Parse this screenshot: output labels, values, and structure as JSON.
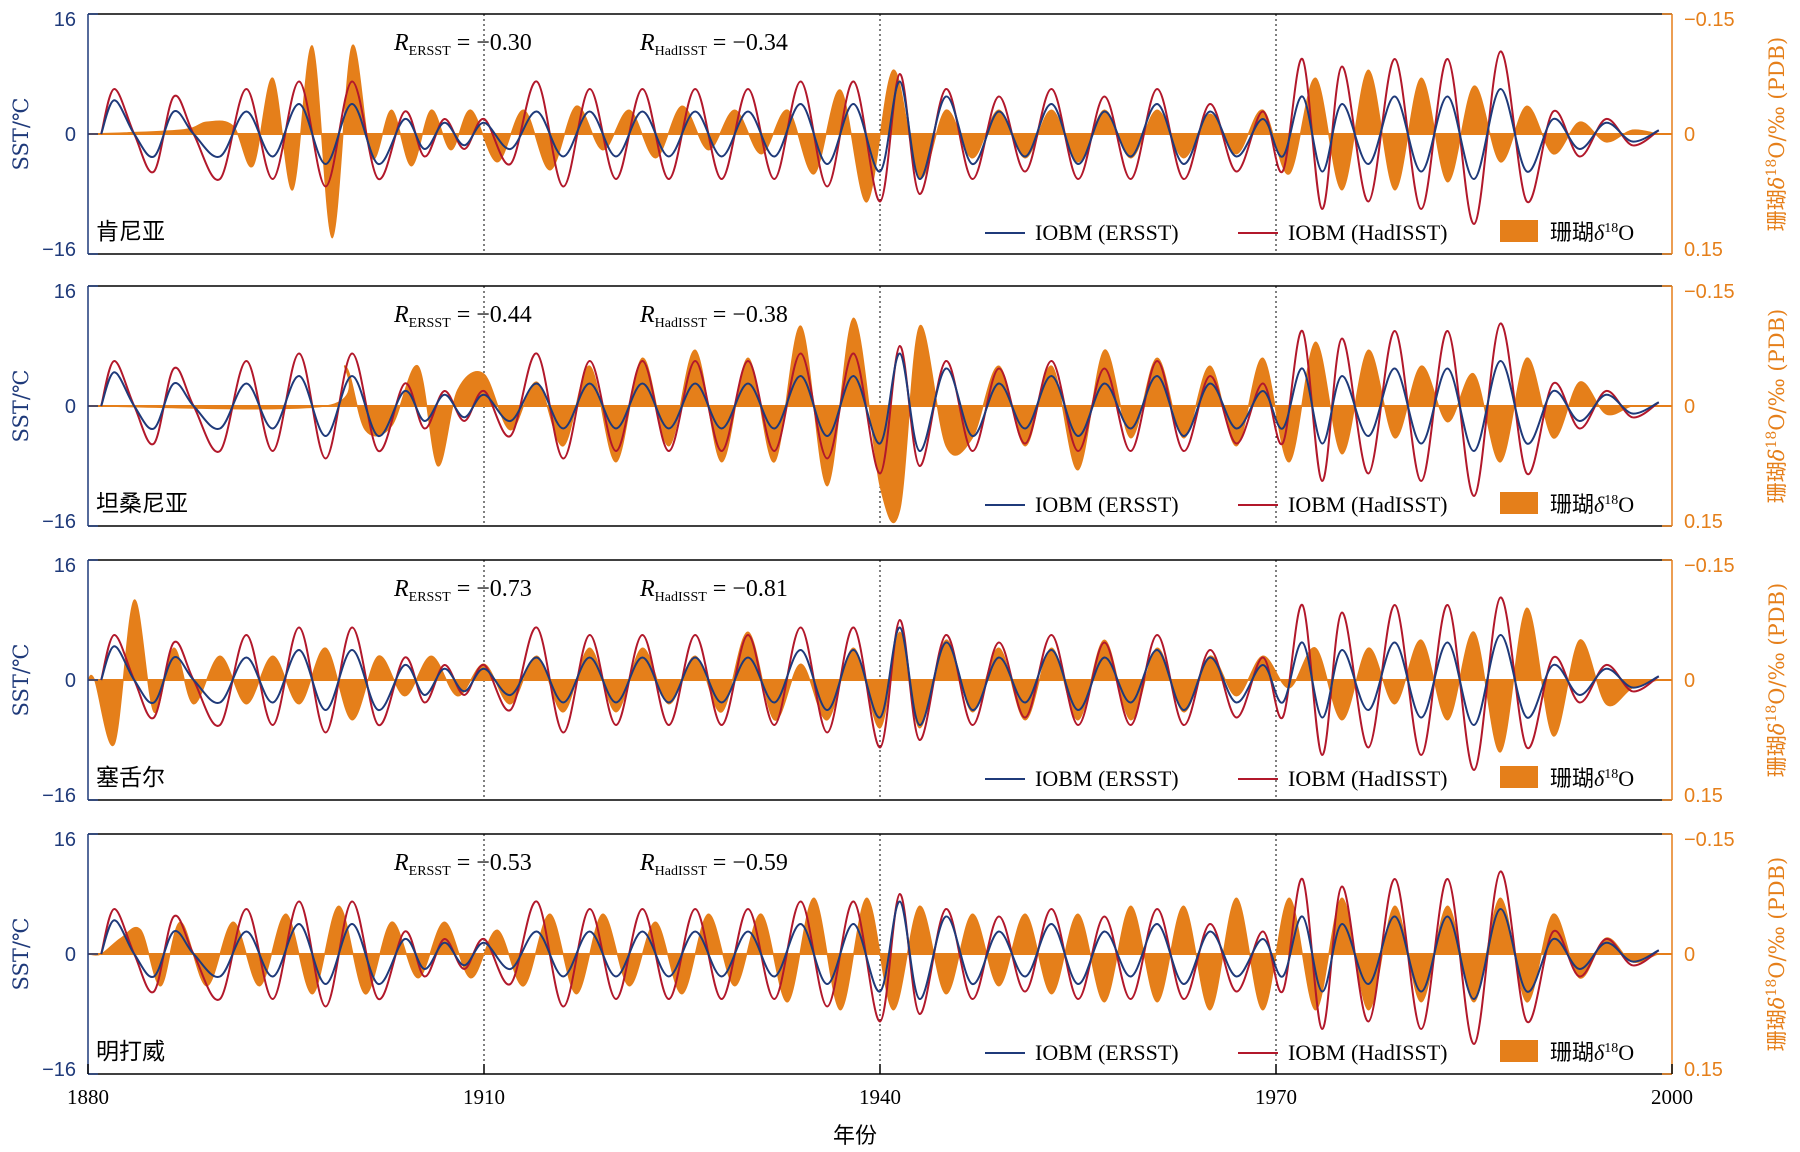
{
  "chart_data": {
    "type": "line",
    "xlabel": "年份",
    "ylabel_left": "SST/℃",
    "ylabel_right_prefix": "珊瑚",
    "ylabel_right_delta": "δ",
    "ylabel_right_sup": "18",
    "ylabel_right_suffix": "O/‰ (PDB)",
    "xlim": [
      1880,
      2000
    ],
    "xticks": [
      "1880",
      "1910",
      "1940",
      "1970",
      "2000"
    ],
    "vlines": [
      1910,
      1940,
      1970
    ],
    "ylim_left": [
      -16,
      16
    ],
    "yticks_left": [
      "16",
      "0",
      "−16"
    ],
    "ylim_right": [
      0.15,
      -0.15
    ],
    "yticks_right": [
      "−0.15",
      "0",
      "0.15"
    ],
    "colors": {
      "ersst": "#1f3a7a",
      "hadisst": "#b2182b",
      "coral": "#e57f1a",
      "axis_left": "#1f3a7a",
      "axis_right": "#e57f1a"
    },
    "legend": {
      "ersst": "IOBM (ERSST)",
      "hadisst": "IOBM (HadISST)",
      "coral_prefix": "珊瑚",
      "coral_delta": "δ",
      "coral_sup": "18",
      "coral_suffix": "O"
    },
    "r_labels": {
      "r": "R",
      "ersst_sub": "ERSST",
      "hadisst_sub": "HadISST",
      "eq": " = "
    },
    "ersst_series": {
      "x": [
        1881,
        1882,
        1883.5,
        1885,
        1886.5,
        1888,
        1890,
        1892,
        1894,
        1896,
        1898,
        1900,
        1902,
        1904,
        1905.5,
        1907,
        1908.5,
        1910,
        1912,
        1914,
        1916,
        1918,
        1920,
        1922,
        1924,
        1926,
        1928,
        1930,
        1932,
        1934,
        1936,
        1938,
        1940,
        1941.5,
        1943,
        1945,
        1947,
        1949,
        1951,
        1953,
        1955,
        1957,
        1959,
        1961,
        1963,
        1965,
        1967,
        1969,
        1970.5,
        1972,
        1973.5,
        1975,
        1977,
        1979,
        1981,
        1983,
        1985,
        1987,
        1989,
        1991,
        1993,
        1995,
        1997,
        1999
      ],
      "y": [
        0,
        4.5,
        0,
        -3,
        3,
        0,
        -3,
        3,
        -3,
        4,
        -4,
        4,
        -4,
        2,
        -2,
        1.5,
        -1.5,
        1.5,
        -2,
        3,
        -3,
        3,
        -3,
        3,
        -3,
        3,
        -3,
        3,
        -3,
        4,
        -4,
        4,
        -5,
        7,
        -6,
        5,
        -4,
        3,
        -3,
        4,
        -4,
        3,
        -3,
        4,
        -4,
        3,
        -3,
        2,
        -3,
        5,
        -5,
        4,
        -4,
        5,
        -5,
        5,
        -6,
        6,
        -5,
        2,
        -2,
        1.5,
        -1,
        0.5
      ]
    },
    "hadisst_series": {
      "x": [
        1881,
        1882,
        1883.5,
        1885,
        1886.5,
        1888,
        1890,
        1892,
        1894,
        1896,
        1898,
        1900,
        1902,
        1904,
        1905.5,
        1907,
        1908.5,
        1910,
        1912,
        1914,
        1916,
        1918,
        1920,
        1922,
        1924,
        1926,
        1928,
        1930,
        1932,
        1934,
        1936,
        1938,
        1940,
        1941.5,
        1943,
        1945,
        1947,
        1949,
        1951,
        1953,
        1955,
        1957,
        1959,
        1961,
        1963,
        1965,
        1967,
        1969,
        1970.5,
        1972,
        1973.5,
        1975,
        1977,
        1979,
        1981,
        1983,
        1985,
        1987,
        1989,
        1991,
        1993,
        1995,
        1997,
        1999
      ],
      "y": [
        0,
        6,
        0,
        -5,
        5,
        0,
        -6,
        6,
        -6,
        7,
        -7,
        7,
        -6,
        3,
        -3,
        2,
        -2,
        2,
        -4,
        7,
        -7,
        6,
        -6,
        6,
        -6,
        6,
        -6,
        6,
        -6,
        7,
        -7,
        7,
        -9,
        8,
        -8,
        6,
        -6,
        5,
        -5,
        6,
        -6,
        5,
        -6,
        6,
        -6,
        4,
        -5,
        3,
        -5,
        10,
        -10,
        9,
        -9,
        10,
        -10,
        10,
        -12,
        11,
        -9,
        3,
        -3,
        2,
        -1.5,
        0.5
      ]
    },
    "panels": [
      {
        "site": "肯尼亚",
        "r_ersst": "−0.30",
        "r_hadisst": "−0.34",
        "coral": {
          "x": [
            1887,
            1889,
            1891,
            1892.5,
            1894,
            1895.5,
            1897,
            1898.5,
            1900,
            1901.5,
            1903,
            1904.5,
            1906,
            1907.5,
            1909,
            1911,
            1913,
            1915,
            1917,
            1919,
            1921,
            1923,
            1925,
            1927,
            1929,
            1931,
            1933,
            1935,
            1937,
            1939,
            1941,
            1943,
            1945,
            1947,
            1949,
            1951,
            1953,
            1955,
            1957,
            1959,
            1961,
            1963,
            1965,
            1967,
            1969,
            1971,
            1973,
            1975,
            1977,
            1979,
            1981,
            1983,
            1985,
            1987,
            1989,
            1991,
            1993,
            1995,
            1997,
            1999
          ],
          "d": [
            -0.005,
            -0.015,
            -0.01,
            0.04,
            -0.07,
            0.07,
            -0.11,
            0.13,
            -0.11,
            0.03,
            -0.03,
            0.04,
            -0.03,
            0.02,
            -0.03,
            0.035,
            -0.03,
            0.045,
            -0.035,
            0.02,
            -0.03,
            0.03,
            -0.035,
            0.02,
            -0.03,
            0.025,
            -0.03,
            0.05,
            -0.055,
            0.085,
            -0.08,
            0.055,
            -0.03,
            0.03,
            -0.03,
            0.03,
            -0.03,
            0.035,
            -0.03,
            0.03,
            -0.03,
            0.03,
            -0.025,
            0.025,
            -0.03,
            0.05,
            -0.07,
            0.07,
            -0.08,
            0.07,
            -0.07,
            0.06,
            -0.06,
            0.035,
            -0.035,
            0.025,
            -0.015,
            0.01,
            -0.005,
            0
          ]
        }
      },
      {
        "site": "坦桑尼亚",
        "r_ersst": "−0.44",
        "r_hadisst": "−0.38",
        "coral": {
          "x": [
            1898,
            1899.5,
            1901,
            1903,
            1905,
            1906.5,
            1908,
            1910,
            1912,
            1914,
            1916,
            1918,
            1920,
            1922,
            1924,
            1926,
            1928,
            1930,
            1932,
            1934,
            1936,
            1938,
            1940,
            1941.5,
            1943,
            1945,
            1947,
            1949,
            1951,
            1953,
            1955,
            1957,
            1959,
            1961,
            1963,
            1965,
            1967,
            1969,
            1971,
            1973,
            1975,
            1977,
            1979,
            1981,
            1983,
            1985,
            1987,
            1989,
            1991,
            1993,
            1995,
            1997,
            1999
          ],
          "d": [
            0,
            -0.05,
            0.03,
            0.025,
            -0.05,
            0.075,
            -0.02,
            -0.04,
            0.03,
            -0.03,
            0.05,
            -0.05,
            0.07,
            -0.06,
            0.05,
            -0.07,
            0.07,
            -0.06,
            0.07,
            -0.1,
            0.1,
            -0.11,
            0.1,
            0.13,
            -0.1,
            0.05,
            0.04,
            -0.05,
            0.05,
            -0.05,
            0.08,
            -0.07,
            0.04,
            -0.06,
            0.04,
            -0.05,
            0.05,
            -0.06,
            0.07,
            -0.08,
            0.06,
            -0.07,
            0.04,
            -0.05,
            0.02,
            -0.04,
            0.07,
            -0.06,
            0.04,
            -0.03,
            0.01,
            0,
            0
          ]
        }
      },
      {
        "site": "塞舌尔",
        "r_ersst": "−0.73",
        "r_hadisst": "−0.81",
        "coral": {
          "x": [
            1880.5,
            1882,
            1883.5,
            1885,
            1886.5,
            1888,
            1890,
            1892,
            1894,
            1896,
            1898,
            1900,
            1902,
            1904,
            1906,
            1908,
            1910,
            1912,
            1914,
            1916,
            1918,
            1920,
            1922,
            1924,
            1926,
            1928,
            1930,
            1932,
            1934,
            1936,
            1938,
            1940,
            1941.5,
            1943,
            1945,
            1947,
            1949,
            1951,
            1953,
            1955,
            1957,
            1959,
            1961,
            1963,
            1965,
            1967,
            1969,
            1971,
            1973,
            1975,
            1977,
            1979,
            1981,
            1983,
            1985,
            1987,
            1989,
            1991,
            1993,
            1995,
            1997,
            1999
          ],
          "d": [
            0,
            0.08,
            -0.1,
            0.04,
            -0.04,
            0.03,
            -0.03,
            0.03,
            -0.03,
            0.03,
            -0.04,
            0.05,
            -0.03,
            0.02,
            -0.03,
            0.02,
            -0.02,
            0.03,
            -0.03,
            0.04,
            -0.04,
            0.04,
            -0.04,
            0.03,
            -0.03,
            0.04,
            -0.06,
            0.05,
            -0.02,
            0.05,
            -0.04,
            0.06,
            -0.06,
            0.06,
            -0.05,
            0.04,
            -0.04,
            0.05,
            -0.04,
            0.05,
            -0.05,
            0.05,
            -0.04,
            0.04,
            -0.03,
            0.02,
            -0.03,
            0.01,
            -0.04,
            0.05,
            -0.04,
            0.03,
            -0.05,
            0.05,
            -0.06,
            0.09,
            -0.09,
            0.07,
            -0.05,
            0.03,
            0.01,
            0
          ]
        }
      },
      {
        "site": "明打威",
        "r_ersst": "−0.53",
        "r_hadisst": "−0.59",
        "coral": {
          "x": [
            1881,
            1882.5,
            1884,
            1885.5,
            1887,
            1889,
            1891,
            1893,
            1895,
            1897,
            1899,
            1901,
            1903,
            1905,
            1907,
            1909,
            1911,
            1913,
            1915,
            1917,
            1919,
            1921,
            1923,
            1925,
            1927,
            1929,
            1931,
            1933,
            1935,
            1937,
            1939,
            1941,
            1943,
            1945,
            1947,
            1949,
            1951,
            1953,
            1955,
            1957,
            1959,
            1961,
            1963,
            1965,
            1967,
            1969,
            1971,
            1973,
            1975,
            1977,
            1979,
            1981,
            1983,
            1985,
            1987,
            1989,
            1991,
            1993,
            1995,
            1997,
            1999
          ],
          "d": [
            0,
            -0.02,
            -0.03,
            0.04,
            -0.04,
            0.04,
            -0.04,
            0.04,
            -0.05,
            0.05,
            -0.06,
            0.05,
            -0.04,
            0.03,
            -0.04,
            0.03,
            -0.03,
            0.04,
            -0.05,
            0.05,
            -0.05,
            0.04,
            -0.04,
            0.05,
            -0.05,
            0.04,
            -0.05,
            0.06,
            -0.07,
            0.07,
            -0.07,
            0.07,
            -0.06,
            0.05,
            -0.05,
            0.04,
            -0.05,
            0.05,
            -0.05,
            0.06,
            -0.06,
            0.06,
            -0.06,
            0.07,
            -0.07,
            0.07,
            -0.07,
            0.07,
            -0.07,
            0.07,
            -0.06,
            0.06,
            -0.06,
            0.06,
            -0.07,
            0.06,
            -0.05,
            0.03,
            -0.02,
            0.01,
            0
          ]
        }
      }
    ]
  }
}
